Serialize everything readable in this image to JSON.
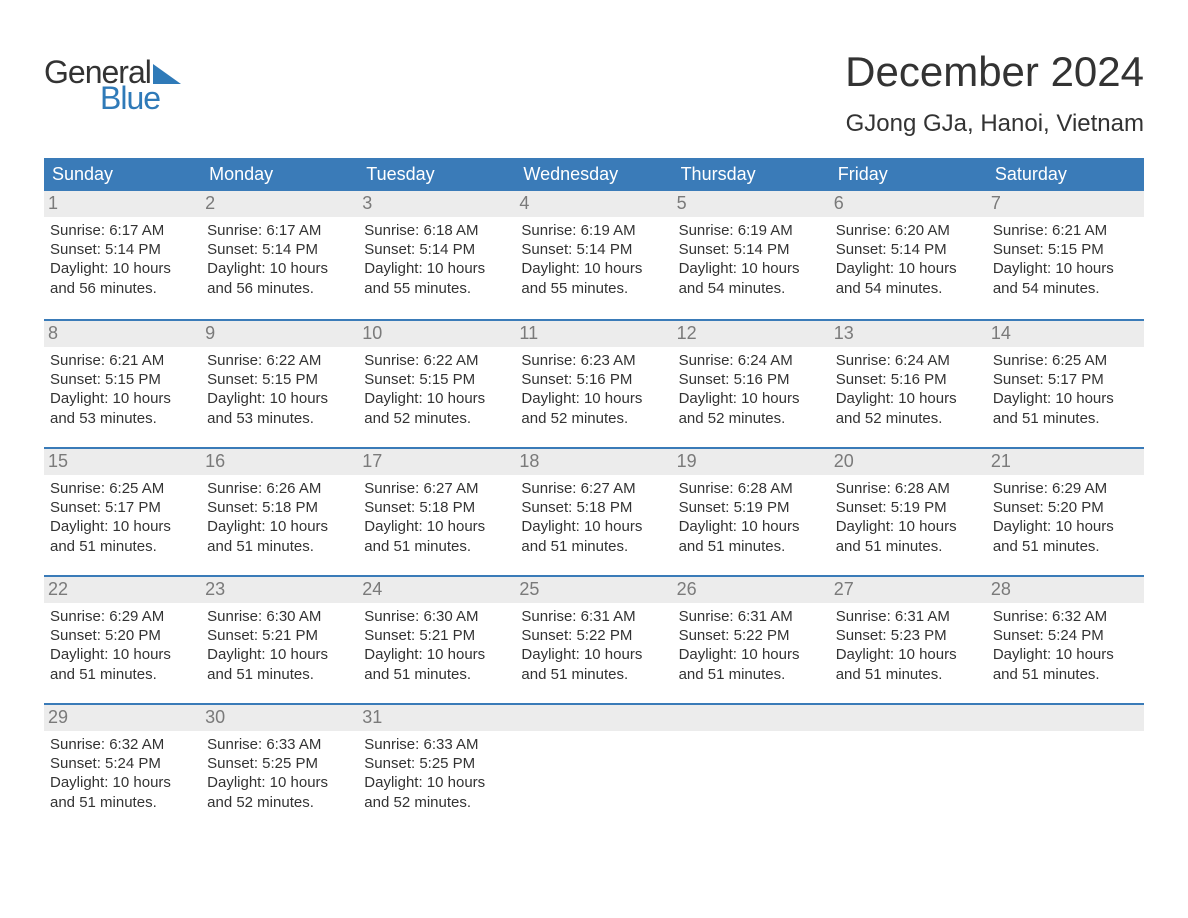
{
  "brand": {
    "word1": "General",
    "word2": "Blue",
    "accent_color": "#2f7ab8"
  },
  "header": {
    "month_title": "December 2024",
    "location": "GJong GJa, Hanoi, Vietnam"
  },
  "colors": {
    "header_bg": "#3a7bb8",
    "header_text": "#ffffff",
    "week_border": "#3a7bb8",
    "daynum_bg": "#ececec",
    "daynum_text": "#7a7a7a",
    "body_text": "#333333",
    "page_bg": "#ffffff"
  },
  "weekdays": [
    "Sunday",
    "Monday",
    "Tuesday",
    "Wednesday",
    "Thursday",
    "Friday",
    "Saturday"
  ],
  "labels": {
    "sunrise": "Sunrise:",
    "sunset": "Sunset:",
    "daylight_prefix": "Daylight:"
  },
  "days": [
    {
      "n": 1,
      "sunrise": "6:17 AM",
      "sunset": "5:14 PM",
      "daylight": "10 hours and 56 minutes."
    },
    {
      "n": 2,
      "sunrise": "6:17 AM",
      "sunset": "5:14 PM",
      "daylight": "10 hours and 56 minutes."
    },
    {
      "n": 3,
      "sunrise": "6:18 AM",
      "sunset": "5:14 PM",
      "daylight": "10 hours and 55 minutes."
    },
    {
      "n": 4,
      "sunrise": "6:19 AM",
      "sunset": "5:14 PM",
      "daylight": "10 hours and 55 minutes."
    },
    {
      "n": 5,
      "sunrise": "6:19 AM",
      "sunset": "5:14 PM",
      "daylight": "10 hours and 54 minutes."
    },
    {
      "n": 6,
      "sunrise": "6:20 AM",
      "sunset": "5:14 PM",
      "daylight": "10 hours and 54 minutes."
    },
    {
      "n": 7,
      "sunrise": "6:21 AM",
      "sunset": "5:15 PM",
      "daylight": "10 hours and 54 minutes."
    },
    {
      "n": 8,
      "sunrise": "6:21 AM",
      "sunset": "5:15 PM",
      "daylight": "10 hours and 53 minutes."
    },
    {
      "n": 9,
      "sunrise": "6:22 AM",
      "sunset": "5:15 PM",
      "daylight": "10 hours and 53 minutes."
    },
    {
      "n": 10,
      "sunrise": "6:22 AM",
      "sunset": "5:15 PM",
      "daylight": "10 hours and 52 minutes."
    },
    {
      "n": 11,
      "sunrise": "6:23 AM",
      "sunset": "5:16 PM",
      "daylight": "10 hours and 52 minutes."
    },
    {
      "n": 12,
      "sunrise": "6:24 AM",
      "sunset": "5:16 PM",
      "daylight": "10 hours and 52 minutes."
    },
    {
      "n": 13,
      "sunrise": "6:24 AM",
      "sunset": "5:16 PM",
      "daylight": "10 hours and 52 minutes."
    },
    {
      "n": 14,
      "sunrise": "6:25 AM",
      "sunset": "5:17 PM",
      "daylight": "10 hours and 51 minutes."
    },
    {
      "n": 15,
      "sunrise": "6:25 AM",
      "sunset": "5:17 PM",
      "daylight": "10 hours and 51 minutes."
    },
    {
      "n": 16,
      "sunrise": "6:26 AM",
      "sunset": "5:18 PM",
      "daylight": "10 hours and 51 minutes."
    },
    {
      "n": 17,
      "sunrise": "6:27 AM",
      "sunset": "5:18 PM",
      "daylight": "10 hours and 51 minutes."
    },
    {
      "n": 18,
      "sunrise": "6:27 AM",
      "sunset": "5:18 PM",
      "daylight": "10 hours and 51 minutes."
    },
    {
      "n": 19,
      "sunrise": "6:28 AM",
      "sunset": "5:19 PM",
      "daylight": "10 hours and 51 minutes."
    },
    {
      "n": 20,
      "sunrise": "6:28 AM",
      "sunset": "5:19 PM",
      "daylight": "10 hours and 51 minutes."
    },
    {
      "n": 21,
      "sunrise": "6:29 AM",
      "sunset": "5:20 PM",
      "daylight": "10 hours and 51 minutes."
    },
    {
      "n": 22,
      "sunrise": "6:29 AM",
      "sunset": "5:20 PM",
      "daylight": "10 hours and 51 minutes."
    },
    {
      "n": 23,
      "sunrise": "6:30 AM",
      "sunset": "5:21 PM",
      "daylight": "10 hours and 51 minutes."
    },
    {
      "n": 24,
      "sunrise": "6:30 AM",
      "sunset": "5:21 PM",
      "daylight": "10 hours and 51 minutes."
    },
    {
      "n": 25,
      "sunrise": "6:31 AM",
      "sunset": "5:22 PM",
      "daylight": "10 hours and 51 minutes."
    },
    {
      "n": 26,
      "sunrise": "6:31 AM",
      "sunset": "5:22 PM",
      "daylight": "10 hours and 51 minutes."
    },
    {
      "n": 27,
      "sunrise": "6:31 AM",
      "sunset": "5:23 PM",
      "daylight": "10 hours and 51 minutes."
    },
    {
      "n": 28,
      "sunrise": "6:32 AM",
      "sunset": "5:24 PM",
      "daylight": "10 hours and 51 minutes."
    },
    {
      "n": 29,
      "sunrise": "6:32 AM",
      "sunset": "5:24 PM",
      "daylight": "10 hours and 51 minutes."
    },
    {
      "n": 30,
      "sunrise": "6:33 AM",
      "sunset": "5:25 PM",
      "daylight": "10 hours and 52 minutes."
    },
    {
      "n": 31,
      "sunrise": "6:33 AM",
      "sunset": "5:25 PM",
      "daylight": "10 hours and 52 minutes."
    }
  ],
  "layout": {
    "start_weekday_index": 0,
    "total_cells": 35
  }
}
